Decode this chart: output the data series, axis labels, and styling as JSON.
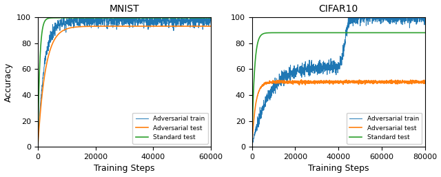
{
  "title_left": "MNIST",
  "title_right": "CIFAR10",
  "xlabel": "Training Steps",
  "ylabel": "Accuracy",
  "legend_labels": [
    "Adversarial train",
    "Adversarial test",
    "Standard test"
  ],
  "colors": [
    "#1f77b4",
    "#ff7f0e",
    "#2ca02c"
  ],
  "mnist": {
    "xlim": [
      0,
      60000
    ],
    "xticks": [
      0,
      20000,
      40000,
      60000
    ],
    "ylim": [
      0,
      100
    ],
    "adv_train_final": 97.5,
    "adv_test_final": 93.0,
    "std_test_final": 99.5,
    "adv_train_rate": 0.00045,
    "adv_test_rate": 0.00038,
    "std_test_rate": 0.0015
  },
  "cifar10": {
    "xlim": [
      0,
      80000
    ],
    "xticks": [
      0,
      20000,
      40000,
      60000,
      80000
    ],
    "ylim": [
      0,
      100
    ],
    "adv_train_phase1_final": 62.0,
    "adv_train_phase2_final": 100.0,
    "adv_train_jump_start": 38000,
    "adv_train_jump_end": 48000,
    "adv_test_final": 50.0,
    "std_test_final": 88.0,
    "adv_test_rate": 0.0006,
    "std_test_rate": 0.0009
  }
}
